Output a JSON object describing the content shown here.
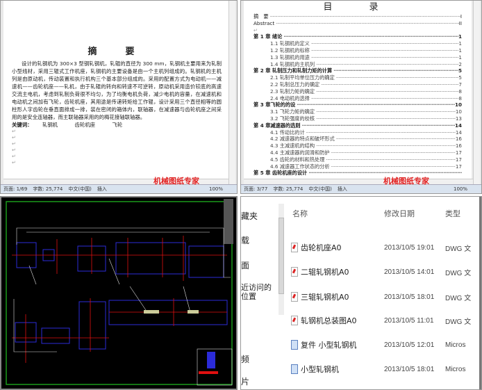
{
  "abstract_doc": {
    "title": "摘　要",
    "body": "设计的轧钢机为 300×3 型钢轧钢机，轧辊的直径为 300 mm，轧钢机主要用来为轧制小型线材，采用三辊式工作机座，轧钢机的主要设备是由一个主机列组成的。轧钢机的主机列是由原动机，传动装置和执行机构三个基本部分组成的。采用的配置方式为电动机——减速机——齿轮机座——轧机，由于轧辊的转向和转速不可逆转，原动机采用造价较底的高速交流主电机，考虑到轧制负荷很不均匀，为了均衡电机负荷，减少电机的容量，在减速机和电动机之间加有飞轮，齿轮机座，其用途是传递转矩给工作辊，设计采用三个直径相等的圆柱形人字齿轮在垂直面排成一排，装在密闭的箱体内，联轴器，在减速器与齿轮机座之间采用的是安全连轴器，而主联轴器采用的的梅花接轴联轴器。",
    "keywords_label": "关键词：",
    "keywords": [
      "轧钢机",
      "齿轮机座",
      "飞轮"
    ],
    "status": {
      "page": "页面: 1/69",
      "words": "字数: 25,774",
      "lang": "中文(中国)",
      "mode": "插入",
      "zoom": "100%"
    },
    "watermark": "机械图纸专家"
  },
  "toc_doc": {
    "title": "目　录",
    "entries": [
      {
        "text": "摘　要",
        "page": "I",
        "level": 0
      },
      {
        "text": "Abstract",
        "page": "II",
        "level": 0
      },
      {
        "text": "",
        "page": "",
        "level": 0
      },
      {
        "text": "第 1 章  绪论",
        "page": "1",
        "level": 1
      },
      {
        "text": "1.1  轧钢机的定义",
        "page": "1",
        "level": 2
      },
      {
        "text": "1.2  轧钢机的标称",
        "page": "1",
        "level": 2
      },
      {
        "text": "1.3  轧钢机的用途",
        "page": "1",
        "level": 2
      },
      {
        "text": "1.4  轧钢机的主机列",
        "page": "2",
        "level": 2
      },
      {
        "text": "第 2 章  轧制压力和轧制力矩的计算",
        "page": "5",
        "level": 1
      },
      {
        "text": "2.1  轧制平均单位压力的确定",
        "page": "5",
        "level": 2
      },
      {
        "text": "2.2  轧制总压力的确定",
        "page": "7",
        "level": 2
      },
      {
        "text": "2.3   轧制力矩的确定",
        "page": "8",
        "level": 2
      },
      {
        "text": "2.4  电动机的选择",
        "page": "8",
        "level": 2
      },
      {
        "text": "第 3 章飞轮的的设",
        "page": "10",
        "level": 1
      },
      {
        "text": "3.1  飞轮力矩的确定",
        "page": "10",
        "level": 2
      },
      {
        "text": "3.2  飞轮强度的校核",
        "page": "13",
        "level": 2
      },
      {
        "text": "第 4 章减速器的选则",
        "page": "14",
        "level": 1
      },
      {
        "text": "4.1  传动比的计",
        "page": "14",
        "level": 2
      },
      {
        "text": "4.2  减速器的特点和破坏形式",
        "page": "16",
        "level": 2
      },
      {
        "text": "4.3  主减速机的结构",
        "page": "16",
        "level": 2
      },
      {
        "text": "4.4  主减速器的润滑和防护",
        "page": "17",
        "level": 2
      },
      {
        "text": "4.5  齿轮的材料和热处理",
        "page": "17",
        "level": 2
      },
      {
        "text": "4.6  减速器工作状态的分析",
        "page": "17",
        "level": 2
      },
      {
        "text": "第 5 章  齿轮机座的设计",
        "page": "",
        "level": 1
      }
    ],
    "status": {
      "page": "页面: 3/77",
      "words": "字数: 25,774",
      "lang": "中文(中国)",
      "mode": "插入",
      "zoom": "100%"
    },
    "watermark": "机械图纸专家"
  },
  "explorer": {
    "nav": [
      "藏夹",
      "载",
      "面",
      "近访问的位置",
      "频",
      "片"
    ],
    "headers": {
      "name": "名称",
      "date": "修改日期",
      "type": "类型"
    },
    "files": [
      {
        "name": "齿轮机座A0",
        "date": "2013/10/5 19:01",
        "type": "DWG 文",
        "icon": "dwg"
      },
      {
        "name": "二辊轧钢机A0",
        "date": "2013/10/5 14:01",
        "type": "DWG 文",
        "icon": "dwg"
      },
      {
        "name": "三辊轧钢机A0",
        "date": "2013/10/5 18:01",
        "type": "DWG 文",
        "icon": "dwg"
      },
      {
        "name": "轧钢机总装图A0",
        "date": "2013/10/5 11:01",
        "type": "DWG 文",
        "icon": "dwg"
      },
      {
        "name": "复件 小型轧钢机",
        "date": "2013/10/5 12:01",
        "type": "Micros",
        "icon": "doc"
      },
      {
        "name": "小型轧钢机",
        "date": "2013/10/5 18:01",
        "type": "Micros",
        "icon": "doc"
      }
    ]
  },
  "colors": {
    "cad_bg": "#000000",
    "cad_blue": "#2020d0",
    "cad_red": "#e01010",
    "cad_frame": "#1a9a1a",
    "watermark": "#e02020"
  }
}
